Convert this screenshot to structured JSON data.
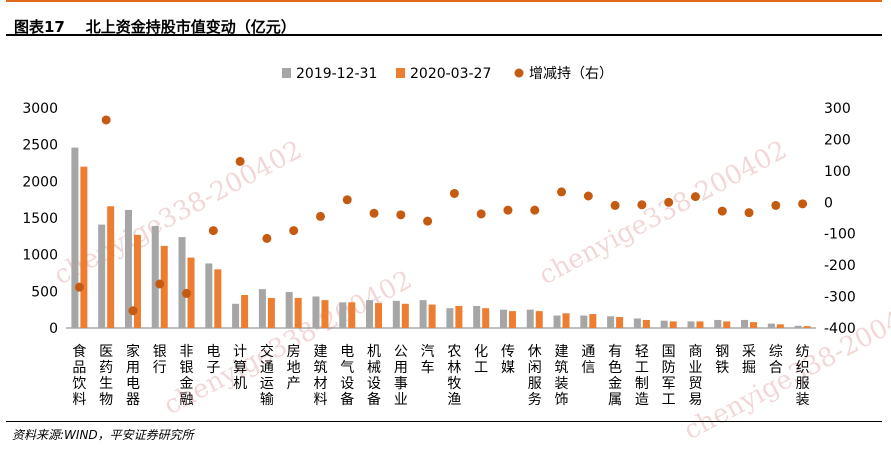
{
  "figure": {
    "title": "图表17    北上资金持股市值变动（亿元）",
    "source": "资料来源:WIND，平安证券研究所",
    "watermark": "chenyige338-200402"
  },
  "colors": {
    "series1": "#a6a6a6",
    "series2": "#ed7d31",
    "dots": "#c55a11",
    "header_rule": "#e06a1a"
  },
  "chart_data": {
    "type": "bar",
    "categories": [
      "食品饮料",
      "医药生物",
      "家用电器",
      "银行",
      "非银金融",
      "电子",
      "计算机",
      "交通运输",
      "房地产",
      "建筑材料",
      "电气设备",
      "机械设备",
      "公用事业",
      "汽车",
      "农林牧渔",
      "化工",
      "传媒",
      "休闲服务",
      "建筑装饰",
      "通信",
      "有色金属",
      "轻工制造",
      "国防军工",
      "商业贸易",
      "钢铁",
      "采掘",
      "综合",
      "纺织服装"
    ],
    "series": [
      {
        "name": "2019-12-31",
        "axis": "left",
        "values": [
          2460,
          1410,
          1610,
          1390,
          1240,
          880,
          330,
          530,
          490,
          430,
          350,
          380,
          370,
          380,
          270,
          300,
          250,
          250,
          170,
          170,
          160,
          130,
          100,
          90,
          110,
          110,
          60,
          30
        ]
      },
      {
        "name": "2020-03-27",
        "axis": "left",
        "values": [
          2200,
          1660,
          1270,
          1120,
          960,
          800,
          450,
          410,
          410,
          380,
          350,
          340,
          330,
          320,
          300,
          270,
          230,
          230,
          200,
          190,
          150,
          110,
          90,
          90,
          90,
          80,
          50,
          25
        ]
      },
      {
        "name": "增减持（右）",
        "axis": "right",
        "type": "scatter",
        "values": [
          -270,
          262,
          -345,
          -260,
          -290,
          -90,
          130,
          -115,
          -90,
          -45,
          8,
          -35,
          -40,
          -60,
          28,
          -37,
          -25,
          -25,
          33,
          20,
          -10,
          -8,
          0,
          18,
          -28,
          -33,
          -10,
          -5
        ]
      }
    ],
    "ylim": [
      0,
      3000
    ],
    "yticks": [
      0,
      500,
      1000,
      1500,
      2000,
      2500,
      3000
    ],
    "y2lim": [
      -400,
      300
    ],
    "y2ticks": [
      -400,
      -300,
      -200,
      -100,
      0,
      100,
      200,
      300
    ],
    "legend": "top-center",
    "grid": false
  }
}
